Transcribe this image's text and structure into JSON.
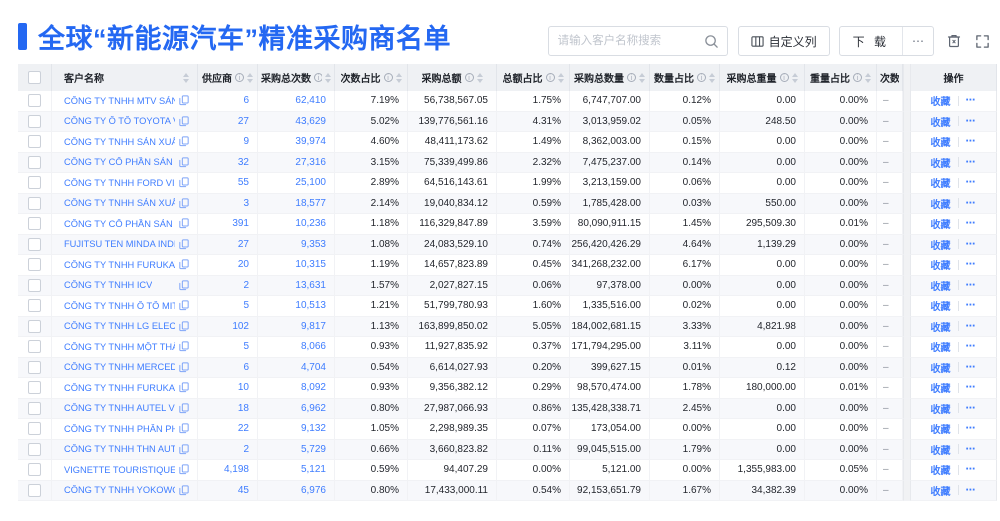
{
  "page": {
    "title": "全球“新能源汽车”精准采购商名单"
  },
  "toolbar": {
    "search_placeholder": "请输入客户名称搜索",
    "customize_columns_label": "自定义列",
    "download_label": "下 载",
    "more_label": "⋯"
  },
  "colors": {
    "accent_blue": "#2468f2",
    "link_blue": "#3f7dff",
    "header_bg": "#eff1f4"
  },
  "table": {
    "columns": [
      {
        "label": "客户名称",
        "info": false,
        "sort": true
      },
      {
        "label": "供应商",
        "info": true,
        "sort": true
      },
      {
        "label": "采购总次数",
        "info": true,
        "sort": true
      },
      {
        "label": "次数占比",
        "info": true,
        "sort": true
      },
      {
        "label": "采购总额",
        "info": true,
        "sort": true
      },
      {
        "label": "总额占比",
        "info": true,
        "sort": true
      },
      {
        "label": "采购总数量",
        "info": true,
        "sort": true
      },
      {
        "label": "数量占比",
        "info": true,
        "sort": true
      },
      {
        "label": "采购总重量",
        "info": true,
        "sort": true
      },
      {
        "label": "重量占比",
        "info": true,
        "sort": true
      },
      {
        "label": "次数趋势",
        "info": false,
        "sort": false
      }
    ],
    "action_column_label": "操作",
    "action": {
      "favorite_label": "收藏",
      "more_label": "⋯"
    },
    "rows": [
      {
        "name": "CÔNG TY TNHH MTV SẢN XUẤ...",
        "suppliers": "6",
        "total_count": "62,410",
        "count_pct": "7.19%",
        "total_amount": "56,738,567.05",
        "amount_pct": "1.75%",
        "total_qty": "6,747,707.00",
        "qty_pct": "0.12%",
        "total_weight": "0.00",
        "weight_pct": "0.00%",
        "trend": "–"
      },
      {
        "name": "CÔNG TY Ô TÔ TOYOTA VIỆT ...",
        "suppliers": "27",
        "total_count": "43,629",
        "count_pct": "5.02%",
        "total_amount": "139,776,561.16",
        "amount_pct": "4.31%",
        "total_qty": "3,013,959.02",
        "qty_pct": "0.05%",
        "total_weight": "248.50",
        "weight_pct": "0.00%",
        "trend": "–"
      },
      {
        "name": "CÔNG TY TNHH SẢN XUẤT VÀ ...",
        "suppliers": "9",
        "total_count": "39,974",
        "count_pct": "4.60%",
        "total_amount": "48,411,173.62",
        "amount_pct": "1.49%",
        "total_qty": "8,362,003.00",
        "qty_pct": "0.15%",
        "total_weight": "0.00",
        "weight_pct": "0.00%",
        "trend": "–"
      },
      {
        "name": "CÔNG TY CỔ PHẦN SẢN XUẤT...",
        "suppliers": "32",
        "total_count": "27,316",
        "count_pct": "3.15%",
        "total_amount": "75,339,499.86",
        "amount_pct": "2.32%",
        "total_qty": "7,475,237.00",
        "qty_pct": "0.14%",
        "total_weight": "0.00",
        "weight_pct": "0.00%",
        "trend": "–"
      },
      {
        "name": "CÔNG TY TNHH FORD VIỆT NAM",
        "suppliers": "55",
        "total_count": "25,100",
        "count_pct": "2.89%",
        "total_amount": "64,516,143.61",
        "amount_pct": "1.99%",
        "total_qty": "3,213,159.00",
        "qty_pct": "0.06%",
        "total_weight": "0.00",
        "weight_pct": "0.00%",
        "trend": "–"
      },
      {
        "name": "CÔNG TY TNHH SẢN XUẤT VÀ ...",
        "suppliers": "3",
        "total_count": "18,577",
        "count_pct": "2.14%",
        "total_amount": "19,040,834.12",
        "amount_pct": "0.59%",
        "total_qty": "1,785,428.00",
        "qty_pct": "0.03%",
        "total_weight": "550.00",
        "weight_pct": "0.00%",
        "trend": "–"
      },
      {
        "name": "CÔNG TY CỔ PHẦN SẢN XUẤT...",
        "suppliers": "391",
        "total_count": "10,236",
        "count_pct": "1.18%",
        "total_amount": "116,329,847.89",
        "amount_pct": "3.59%",
        "total_qty": "80,090,911.15",
        "qty_pct": "1.45%",
        "total_weight": "295,509.30",
        "weight_pct": "0.01%",
        "trend": "–"
      },
      {
        "name": "FUJITSU TEN MINDA INDIA PVT...",
        "suppliers": "27",
        "total_count": "9,353",
        "count_pct": "1.08%",
        "total_amount": "24,083,529.10",
        "amount_pct": "0.74%",
        "total_qty": "256,420,426.29",
        "qty_pct": "4.64%",
        "total_weight": "1,139.29",
        "weight_pct": "0.00%",
        "trend": "–"
      },
      {
        "name": "CÔNG TY TNHH FURUKAWA A...",
        "suppliers": "20",
        "total_count": "10,315",
        "count_pct": "1.19%",
        "total_amount": "14,657,823.89",
        "amount_pct": "0.45%",
        "total_qty": "341,268,232.00",
        "qty_pct": "6.17%",
        "total_weight": "0.00",
        "weight_pct": "0.00%",
        "trend": "–"
      },
      {
        "name": "CÔNG TY TNHH ICV",
        "suppliers": "2",
        "total_count": "13,631",
        "count_pct": "1.57%",
        "total_amount": "2,027,827.15",
        "amount_pct": "0.06%",
        "total_qty": "97,378.00",
        "qty_pct": "0.00%",
        "total_weight": "0.00",
        "weight_pct": "0.00%",
        "trend": "–"
      },
      {
        "name": "CÔNG TY TNHH Ô TÔ MITSUBI...",
        "suppliers": "5",
        "total_count": "10,513",
        "count_pct": "1.21%",
        "total_amount": "51,799,780.93",
        "amount_pct": "1.60%",
        "total_qty": "1,335,516.00",
        "qty_pct": "0.02%",
        "total_weight": "0.00",
        "weight_pct": "0.00%",
        "trend": "–"
      },
      {
        "name": "CÔNG TY TNHH LG ELECTRON...",
        "suppliers": "102",
        "total_count": "9,817",
        "count_pct": "1.13%",
        "total_amount": "163,899,850.02",
        "amount_pct": "5.05%",
        "total_qty": "184,002,681.15",
        "qty_pct": "3.33%",
        "total_weight": "4,821.98",
        "weight_pct": "0.00%",
        "trend": "–"
      },
      {
        "name": "CÔNG TY TNHH MỘT THÀNH V...",
        "suppliers": "5",
        "total_count": "8,066",
        "count_pct": "0.93%",
        "total_amount": "11,927,835.92",
        "amount_pct": "0.37%",
        "total_qty": "171,794,295.00",
        "qty_pct": "3.11%",
        "total_weight": "0.00",
        "weight_pct": "0.00%",
        "trend": "–"
      },
      {
        "name": "CÔNG TY TNHH MERCEDES–B...",
        "suppliers": "6",
        "total_count": "4,704",
        "count_pct": "0.54%",
        "total_amount": "6,614,027.93",
        "amount_pct": "0.20%",
        "total_qty": "399,627.15",
        "qty_pct": "0.01%",
        "total_weight": "0.12",
        "weight_pct": "0.00%",
        "trend": "–"
      },
      {
        "name": "CÔNG TY TNHH FURUKAWA A...",
        "suppliers": "10",
        "total_count": "8,092",
        "count_pct": "0.93%",
        "total_amount": "9,356,382.12",
        "amount_pct": "0.29%",
        "total_qty": "98,570,474.00",
        "qty_pct": "1.78%",
        "total_weight": "180,000.00",
        "weight_pct": "0.01%",
        "trend": "–"
      },
      {
        "name": "CÔNG TY TNHH AUTEL VIỆT N...",
        "suppliers": "18",
        "total_count": "6,962",
        "count_pct": "0.80%",
        "total_amount": "27,987,066.93",
        "amount_pct": "0.86%",
        "total_qty": "135,428,338.71",
        "qty_pct": "2.45%",
        "total_weight": "0.00",
        "weight_pct": "0.00%",
        "trend": "–"
      },
      {
        "name": "CÔNG TY TNHH PHÂN PHỐI T...",
        "suppliers": "22",
        "total_count": "9,132",
        "count_pct": "1.05%",
        "total_amount": "2,298,989.35",
        "amount_pct": "0.07%",
        "total_qty": "173,054.00",
        "qty_pct": "0.00%",
        "total_weight": "0.00",
        "weight_pct": "0.00%",
        "trend": "–"
      },
      {
        "name": "CÔNG TY TNHH THN AUTOPAR...",
        "suppliers": "2",
        "total_count": "5,729",
        "count_pct": "0.66%",
        "total_amount": "3,660,823.82",
        "amount_pct": "0.11%",
        "total_qty": "99,045,515.00",
        "qty_pct": "1.79%",
        "total_weight": "0.00",
        "weight_pct": "0.00%",
        "trend": "–"
      },
      {
        "name": "VIGNETTE TOURISTIQUE G UNI...",
        "suppliers": "4,198",
        "total_count": "5,121",
        "count_pct": "0.59%",
        "total_amount": "94,407.29",
        "amount_pct": "0.00%",
        "total_qty": "5,121.00",
        "qty_pct": "0.00%",
        "total_weight": "1,355,983.00",
        "weight_pct": "0.05%",
        "trend": "–"
      },
      {
        "name": "CÔNG TY TNHH YOKOWO VIỆT...",
        "suppliers": "45",
        "total_count": "6,976",
        "count_pct": "0.80%",
        "total_amount": "17,433,000.11",
        "amount_pct": "0.54%",
        "total_qty": "92,153,651.79",
        "qty_pct": "1.67%",
        "total_weight": "34,382.39",
        "weight_pct": "0.00%",
        "trend": "–"
      }
    ]
  }
}
